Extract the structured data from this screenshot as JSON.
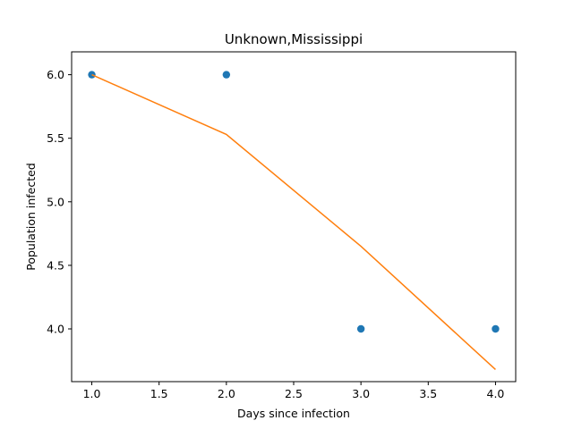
{
  "chart_data": {
    "type": "scatter",
    "title": "Unknown,Mississippi",
    "xlabel": "Days since infection",
    "ylabel": "Population infected",
    "xlim": [
      0.85,
      4.15
    ],
    "ylim": [
      3.585,
      6.18
    ],
    "x_ticks": [
      1.0,
      1.5,
      2.0,
      2.5,
      3.0,
      3.5,
      4.0
    ],
    "x_tick_labels": [
      "1.0",
      "1.5",
      "2.0",
      "2.5",
      "3.0",
      "3.5",
      "4.0"
    ],
    "y_ticks": [
      4.0,
      4.5,
      5.0,
      5.5,
      6.0
    ],
    "y_tick_labels": [
      "4.0",
      "4.5",
      "5.0",
      "5.5",
      "6.0"
    ],
    "grid": false,
    "series": [
      {
        "kind": "scatter",
        "color": "#1f77b4",
        "x": [
          1,
          2,
          3,
          4
        ],
        "y": [
          6,
          6,
          4,
          4
        ]
      },
      {
        "kind": "line",
        "color": "#ff7f0e",
        "x": [
          1,
          2,
          3,
          4
        ],
        "y": [
          6.0,
          5.53,
          4.65,
          3.68
        ]
      }
    ]
  }
}
